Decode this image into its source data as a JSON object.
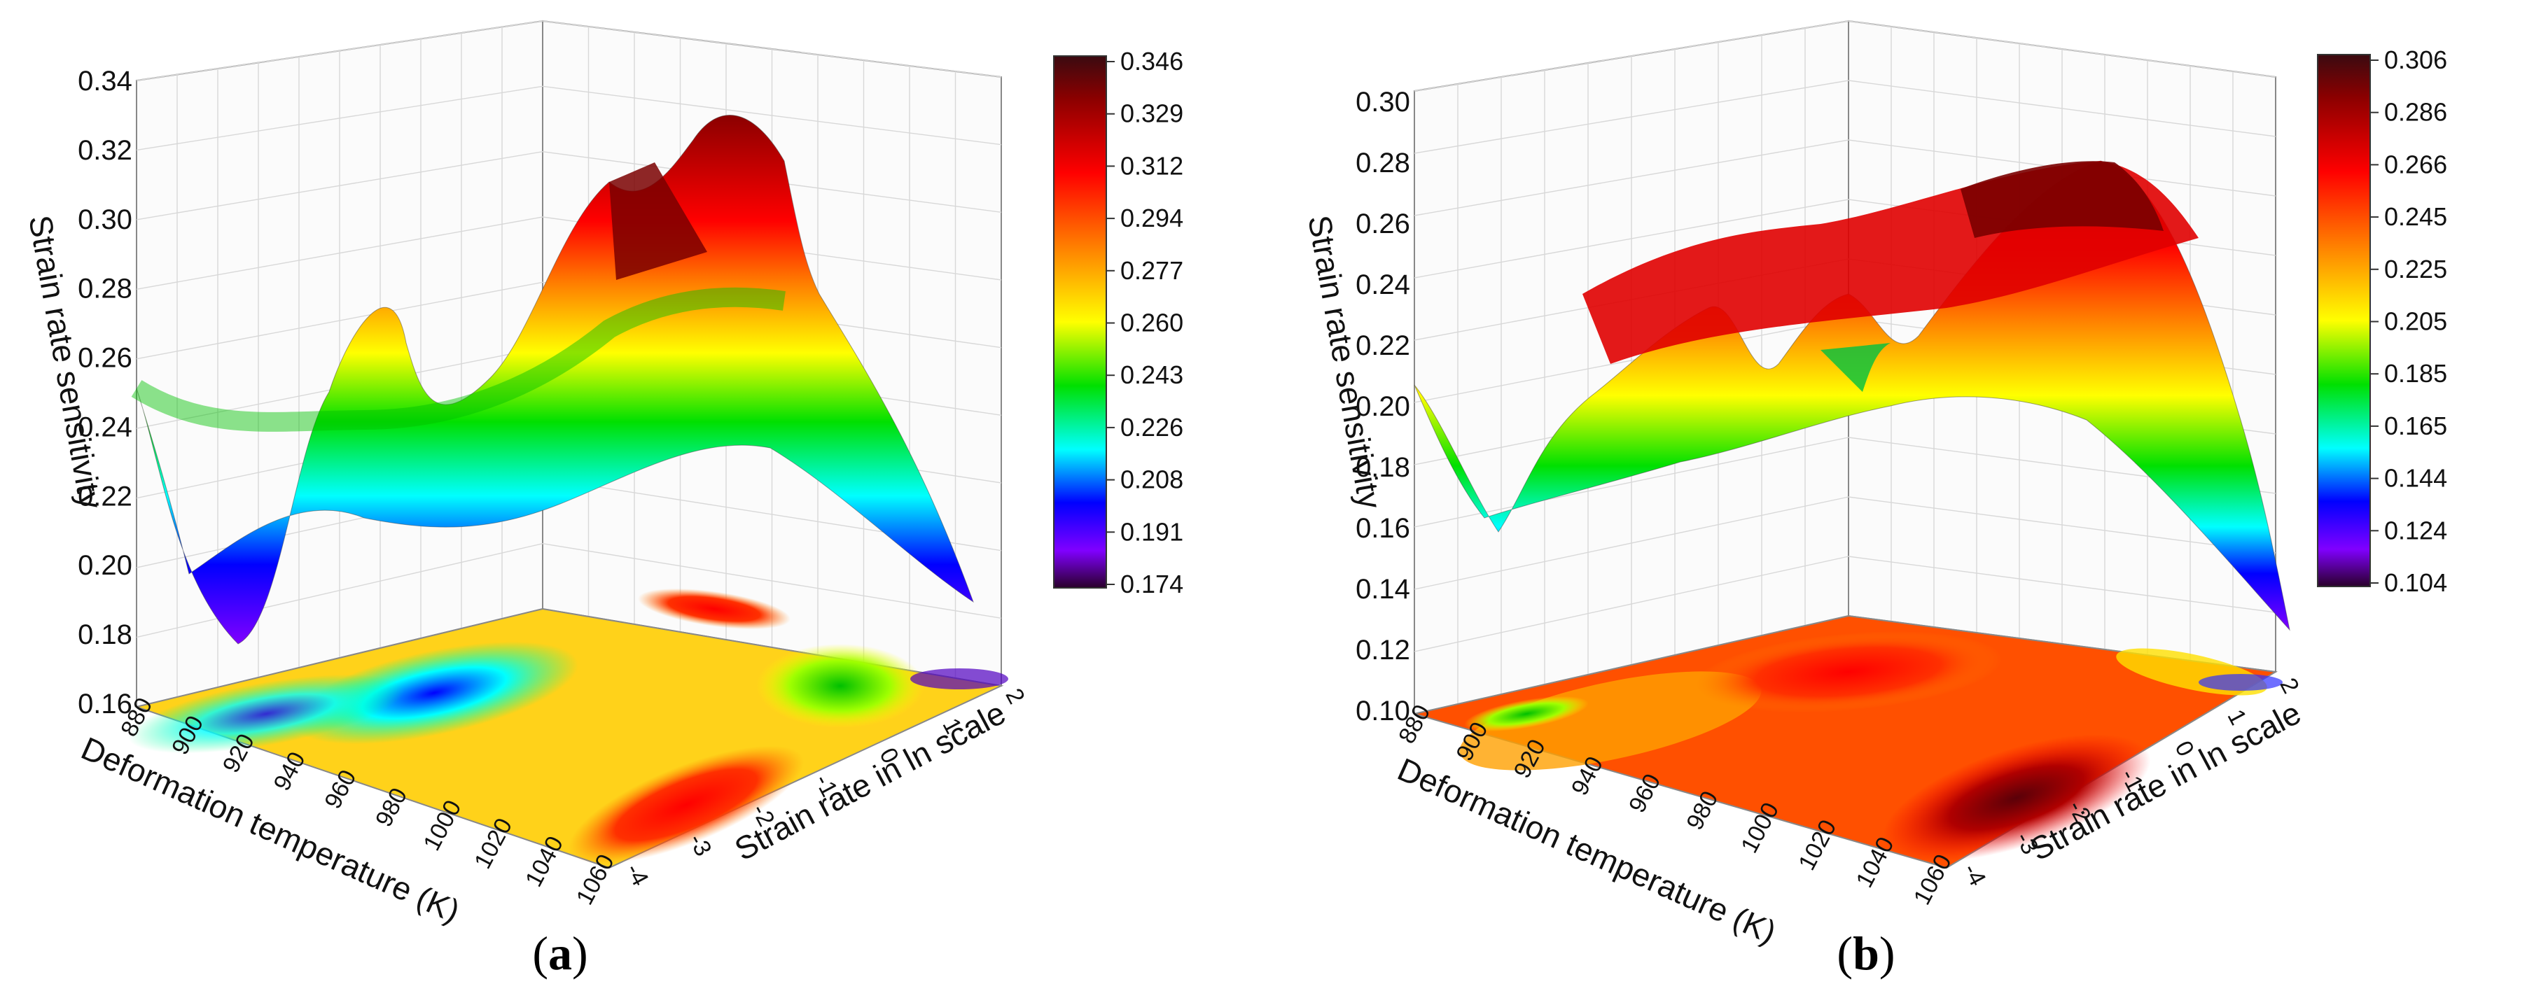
{
  "chart_data": [
    {
      "type": "surface3d",
      "panel_label": "(a)",
      "panel_letter": "a",
      "zlabel": "Strain rate sensitivity",
      "xlabel": "Deformation temperature (K)",
      "ylabel": "Strain rate in ln scale",
      "z_ticks": [
        "0.16",
        "0.18",
        "0.20",
        "0.22",
        "0.24",
        "0.26",
        "0.28",
        "0.30",
        "0.32",
        "0.34"
      ],
      "x_ticks": [
        "880",
        "900",
        "920",
        "940",
        "960",
        "980",
        "1000",
        "1020",
        "1040",
        "1060"
      ],
      "y_ticks": [
        "-4",
        "-3",
        "-2",
        "-1",
        "0",
        "1",
        "2"
      ],
      "zlim": [
        0.16,
        0.35
      ],
      "colorbar_ticks": [
        "0.346",
        "0.329",
        "0.312",
        "0.294",
        "0.277",
        "0.260",
        "0.243",
        "0.226",
        "0.208",
        "0.191",
        "0.174"
      ],
      "colormap": [
        "#3a0a10",
        "#8b0000",
        "#ff0000",
        "#ff8000",
        "#ffff00",
        "#00e000",
        "#00ffff",
        "#0000ff",
        "#8000ff",
        "#2a002a"
      ],
      "contour_on_floor": true
    },
    {
      "type": "surface3d",
      "panel_label": "(b)",
      "panel_letter": "b",
      "zlabel": "Strain rate sensitivity",
      "xlabel": "Deformation temperature (K)",
      "ylabel": "Strain rate in ln scale",
      "z_ticks": [
        "0.10",
        "0.12",
        "0.14",
        "0.16",
        "0.18",
        "0.20",
        "0.22",
        "0.24",
        "0.26",
        "0.28",
        "0.30"
      ],
      "x_ticks": [
        "880",
        "900",
        "920",
        "940",
        "960",
        "980",
        "1000",
        "1020",
        "1040",
        "1060"
      ],
      "y_ticks": [
        "-4",
        "-3",
        "-2",
        "-1",
        "0",
        "1",
        "2"
      ],
      "zlim": [
        0.1,
        0.31
      ],
      "colorbar_ticks": [
        "0.306",
        "0.286",
        "0.266",
        "0.245",
        "0.225",
        "0.205",
        "0.185",
        "0.165",
        "0.144",
        "0.124",
        "0.104"
      ],
      "colormap": [
        "#3a0a10",
        "#8b0000",
        "#ff0000",
        "#ff8000",
        "#ffff00",
        "#00e000",
        "#00ffff",
        "#0000ff",
        "#8000ff",
        "#2a002a"
      ],
      "contour_on_floor": true
    }
  ]
}
